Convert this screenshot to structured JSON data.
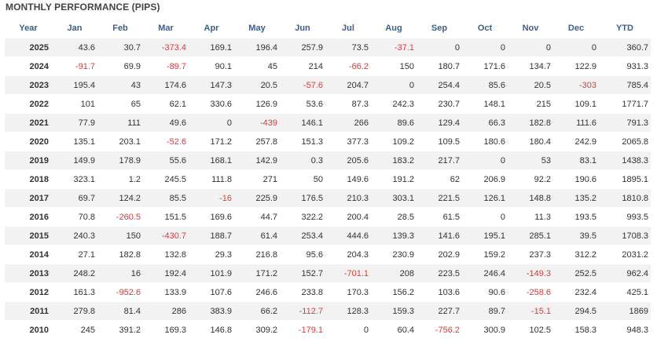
{
  "title": "MONTHLY PERFORMANCE (PIPS)",
  "colors": {
    "header_text": "#3b5f8a",
    "negative": "#e03a3a",
    "stripe": "#f2f2f2"
  },
  "columns": [
    "Year",
    "Jan",
    "Feb",
    "Mar",
    "Apr",
    "May",
    "Jun",
    "Jul",
    "Aug",
    "Sep",
    "Oct",
    "Nov",
    "Dec",
    "YTD"
  ],
  "rows": [
    [
      "2025",
      "43.6",
      "30.7",
      "-373.4",
      "169.1",
      "196.4",
      "257.9",
      "73.5",
      "-37.1",
      "0",
      "0",
      "0",
      "0",
      "360.7"
    ],
    [
      "2024",
      "-91.7",
      "69.9",
      "-89.7",
      "90.1",
      "45",
      "214",
      "-66.2",
      "150",
      "180.7",
      "171.6",
      "134.7",
      "122.9",
      "931.3"
    ],
    [
      "2023",
      "195.4",
      "43",
      "174.6",
      "147.3",
      "20.5",
      "-57.6",
      "204.7",
      "0",
      "254.4",
      "85.6",
      "20.5",
      "-303",
      "785.4"
    ],
    [
      "2022",
      "101",
      "65",
      "62.1",
      "330.6",
      "126.9",
      "53.6",
      "87.3",
      "242.3",
      "230.7",
      "148.1",
      "215",
      "109.1",
      "1771.7"
    ],
    [
      "2021",
      "77.9",
      "111",
      "49.6",
      "0",
      "-439",
      "146.1",
      "266",
      "89.6",
      "129.4",
      "66.3",
      "182.8",
      "111.6",
      "791.3"
    ],
    [
      "2020",
      "135.1",
      "203.1",
      "-52.6",
      "171.2",
      "257.8",
      "151.3",
      "377.3",
      "109.2",
      "109.5",
      "180.6",
      "180.4",
      "242.9",
      "2065.8"
    ],
    [
      "2019",
      "149.9",
      "178.9",
      "55.6",
      "168.1",
      "142.9",
      "0.3",
      "205.6",
      "183.2",
      "217.7",
      "0",
      "53",
      "83.1",
      "1438.3"
    ],
    [
      "2018",
      "323.1",
      "1.2",
      "245.5",
      "111.8",
      "271",
      "50",
      "149.6",
      "191.2",
      "62",
      "206.9",
      "92.2",
      "190.6",
      "1895.1"
    ],
    [
      "2017",
      "69.7",
      "124.2",
      "85.5",
      "-16",
      "225.9",
      "176.5",
      "210.3",
      "303.1",
      "221.5",
      "126.1",
      "148.8",
      "135.2",
      "1810.8"
    ],
    [
      "2016",
      "70.8",
      "-260.5",
      "151.5",
      "169.6",
      "44.7",
      "322.2",
      "200.4",
      "28.5",
      "61.5",
      "0",
      "11.3",
      "193.5",
      "993.5"
    ],
    [
      "2015",
      "240.3",
      "150",
      "-430.7",
      "188.7",
      "61.4",
      "253.4",
      "444.6",
      "139.3",
      "141.6",
      "195.1",
      "285.1",
      "39.5",
      "1708.3"
    ],
    [
      "2014",
      "27.1",
      "182.8",
      "132.8",
      "29.3",
      "216.8",
      "95.6",
      "204.3",
      "230.9",
      "202.9",
      "159.2",
      "237.3",
      "312.2",
      "2031.2"
    ],
    [
      "2013",
      "248.2",
      "16",
      "192.4",
      "101.9",
      "171.2",
      "152.7",
      "-701.1",
      "208",
      "223.5",
      "246.4",
      "-149.3",
      "252.5",
      "962.4"
    ],
    [
      "2012",
      "161.3",
      "-952.6",
      "133.9",
      "107.6",
      "246.6",
      "233.8",
      "170.3",
      "156.2",
      "103.6",
      "90.6",
      "-258.6",
      "232.4",
      "425.1"
    ],
    [
      "2011",
      "279.8",
      "81.4",
      "286",
      "383.9",
      "66.2",
      "-112.7",
      "128.3",
      "159.3",
      "227.7",
      "89.7",
      "-15.1",
      "294.5",
      "1869"
    ],
    [
      "2010",
      "245",
      "391.2",
      "169.3",
      "146.8",
      "309.2",
      "-179.1",
      "0",
      "60.4",
      "-756.2",
      "300.9",
      "102.5",
      "158.3",
      "948.3"
    ]
  ]
}
